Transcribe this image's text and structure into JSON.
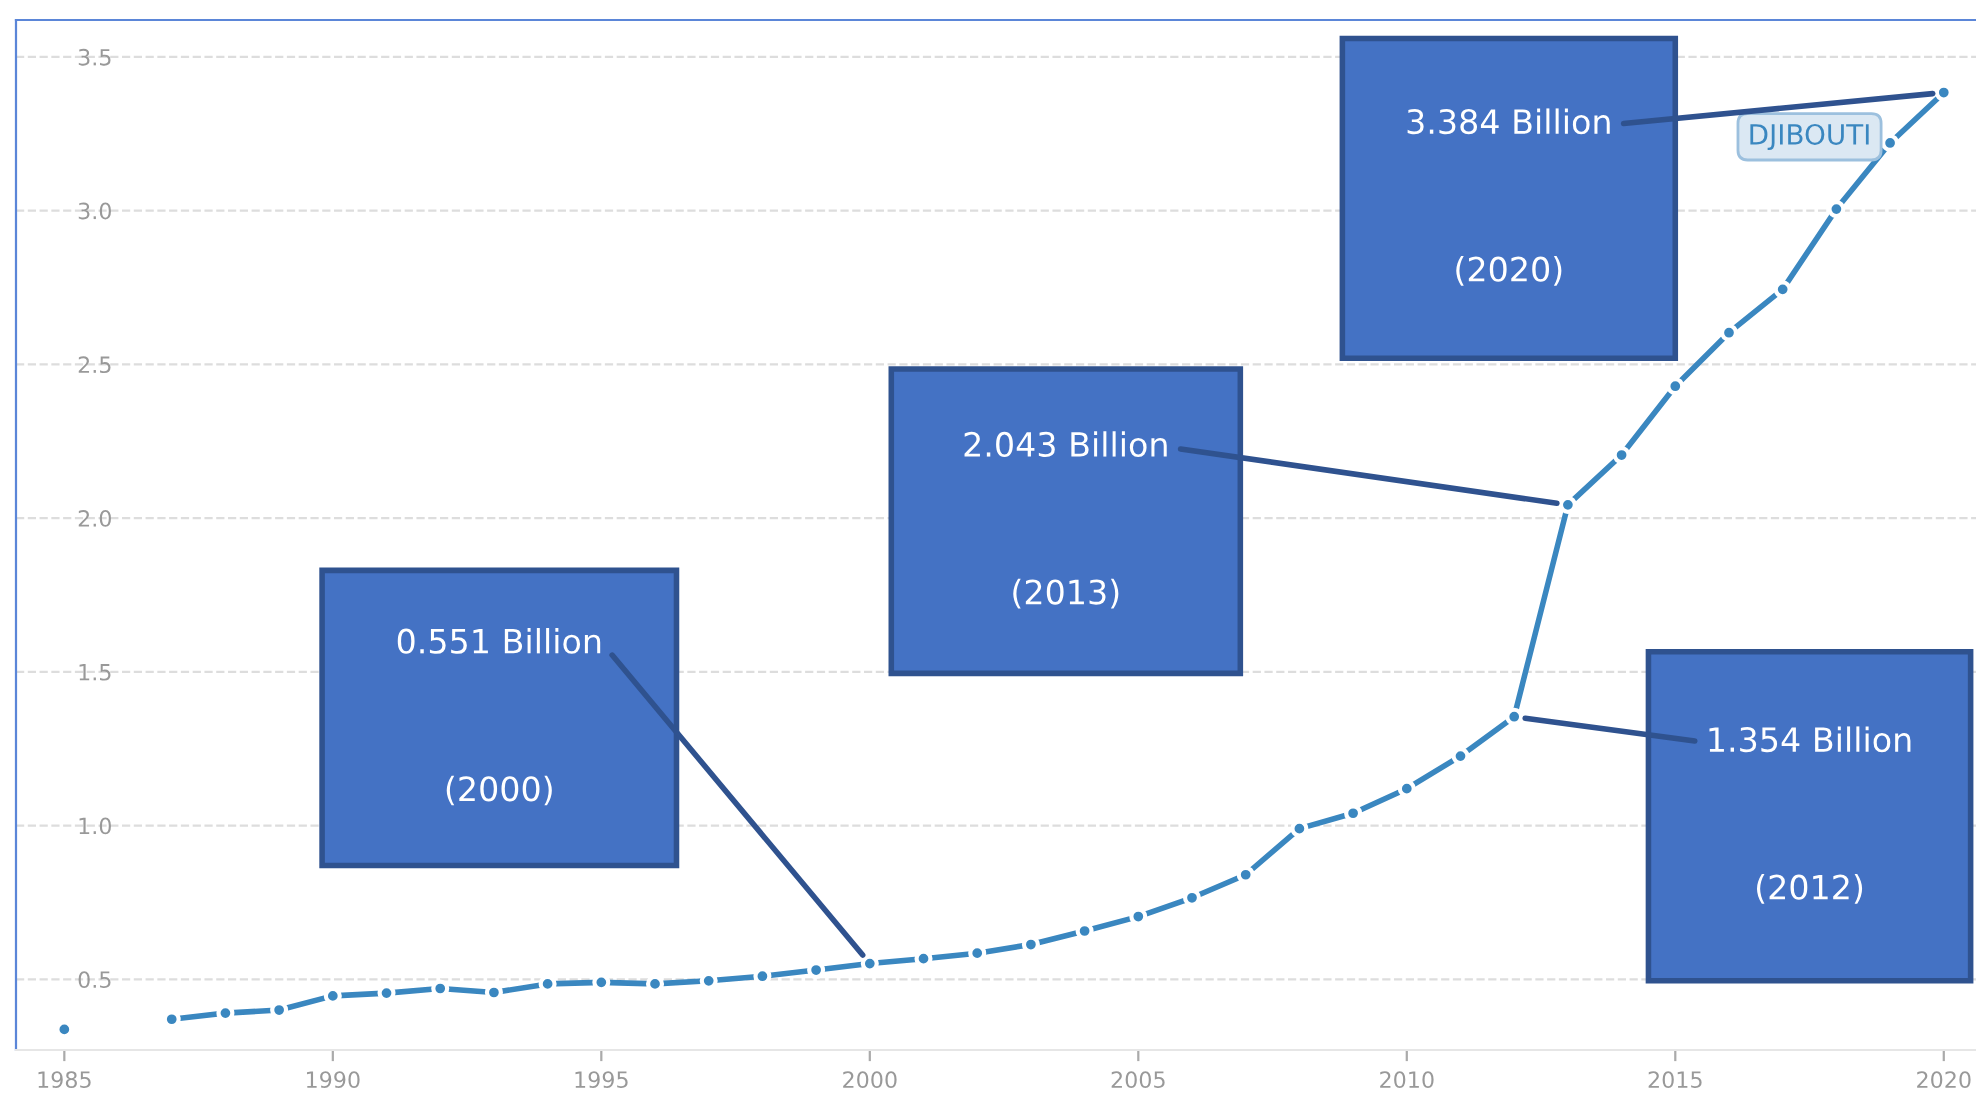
{
  "chart_data": {
    "type": "line",
    "x": [
      1985,
      1986,
      1987,
      1988,
      1989,
      1990,
      1991,
      1992,
      1993,
      1994,
      1995,
      1996,
      1997,
      1998,
      1999,
      2000,
      2001,
      2002,
      2003,
      2004,
      2005,
      2006,
      2007,
      2008,
      2009,
      2010,
      2011,
      2012,
      2013,
      2014,
      2015,
      2016,
      2017,
      2018,
      2019,
      2020
    ],
    "series": [
      {
        "name": "DJIBOUTI",
        "color": "#3a87c0",
        "values": [
          0.337,
          null,
          0.37,
          0.39,
          0.4,
          0.446,
          0.455,
          0.47,
          0.457,
          0.485,
          0.49,
          0.485,
          0.495,
          0.51,
          0.53,
          0.551,
          0.567,
          0.585,
          0.613,
          0.657,
          0.704,
          0.765,
          0.84,
          0.99,
          1.04,
          1.12,
          1.226,
          1.354,
          2.043,
          2.205,
          2.429,
          2.603,
          2.744,
          3.005,
          3.22,
          3.384
        ]
      }
    ],
    "xlim": [
      1984.1,
      2020.6
    ],
    "ylim": [
      0.27,
      3.62
    ],
    "xticks": [
      1985,
      1990,
      1995,
      2000,
      2005,
      2010,
      2015,
      2020
    ],
    "yticks": [
      {
        "value": 0.5,
        "label": "0.5"
      },
      {
        "value": 1.0,
        "label": "1.0"
      },
      {
        "value": 1.5,
        "label": "1.5"
      },
      {
        "value": 2.0,
        "label": "2.0"
      },
      {
        "value": 2.5,
        "label": "2.5"
      },
      {
        "value": 3.0,
        "label": "3.0"
      },
      {
        "value": 3.5,
        "label": "3.5"
      }
    ],
    "grid": "y",
    "marker": "circle",
    "line_style": "solid",
    "annotations": [
      {
        "text": "0.551 Billion",
        "x": 2000,
        "y": 0.551
      },
      "(2000)",
      {
        "text": "2.043 Billion",
        "x": 2013,
        "y": 2.043
      },
      "(2013)",
      {
        "text": "3.384 Billion",
        "x": 2020,
        "y": 3.384
      },
      "(2020)",
      {
        "text": "1.354 Billion",
        "x": 2012,
        "y": 1.354
      },
      "(2012)"
    ]
  }
}
